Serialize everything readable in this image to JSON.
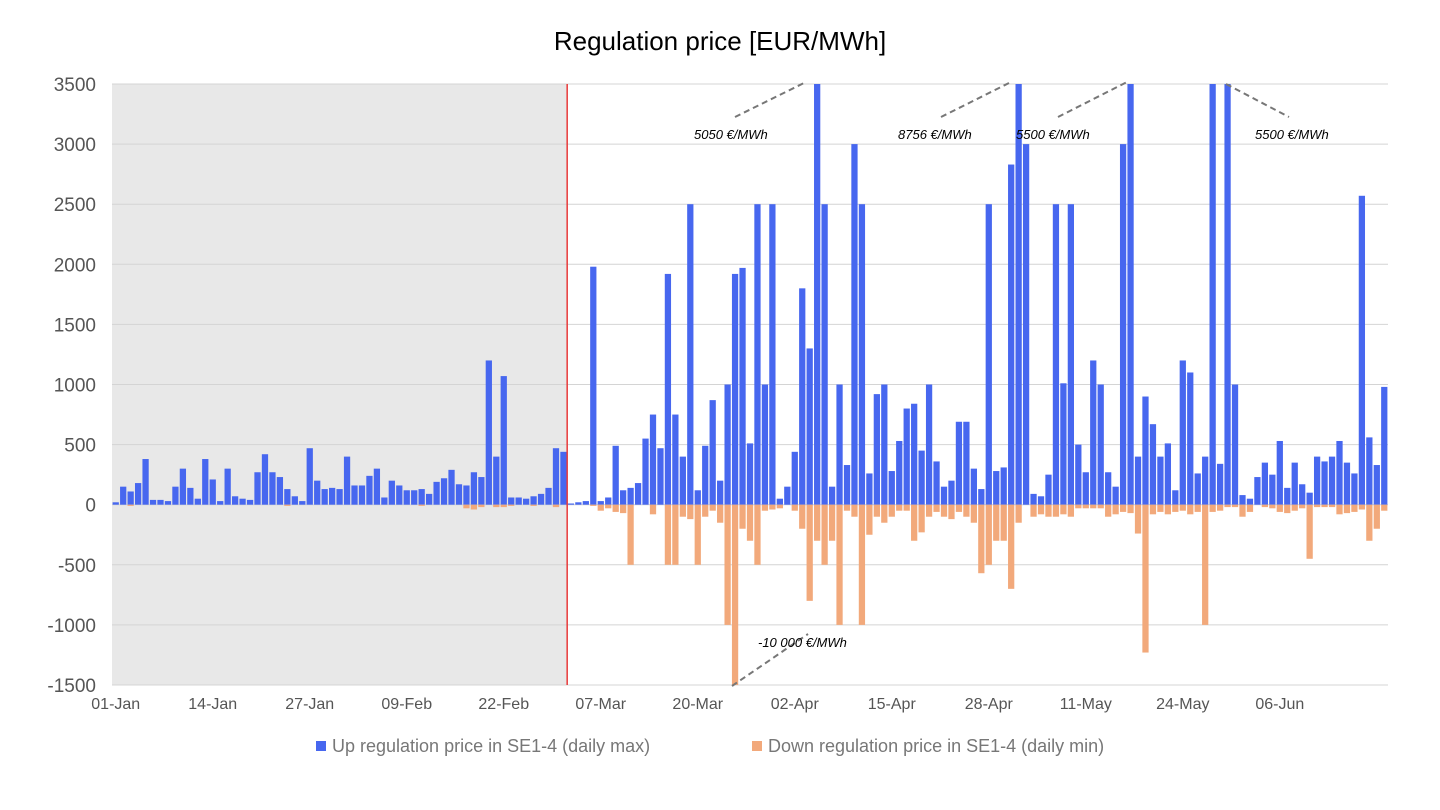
{
  "chart_data": {
    "type": "bar",
    "title": "Regulation price [EUR/MWh]",
    "xlabel": "",
    "ylabel": "",
    "ylim": [
      -1500,
      3500
    ],
    "yticks": [
      3500,
      3000,
      2500,
      2000,
      1500,
      1000,
      500,
      0,
      -500,
      -1000,
      -1500
    ],
    "grid": true,
    "legend_position": "bottom",
    "x_tick_labels": [
      "01-Jan",
      "14-Jan",
      "27-Jan",
      "09-Feb",
      "22-Feb",
      "07-Mar",
      "20-Mar",
      "02-Apr",
      "15-Apr",
      "28-Apr",
      "11-May",
      "24-May",
      "06-Jun"
    ],
    "shaded_region_end": "03-Mar",
    "marker_line_at": "03-Mar",
    "series": [
      {
        "name": "Up regulation price in SE1-4 (daily max)",
        "color": "#4767ef",
        "values": [
          20,
          150,
          110,
          180,
          380,
          40,
          40,
          30,
          150,
          300,
          140,
          50,
          380,
          210,
          30,
          300,
          70,
          50,
          40,
          270,
          420,
          270,
          230,
          130,
          70,
          30,
          470,
          200,
          130,
          140,
          130,
          400,
          160,
          160,
          240,
          300,
          60,
          200,
          160,
          120,
          120,
          130,
          90,
          190,
          220,
          290,
          170,
          160,
          270,
          230,
          1200,
          400,
          1070,
          60,
          60,
          50,
          70,
          90,
          140,
          470,
          440,
          10,
          20,
          30,
          1980,
          30,
          60,
          490,
          120,
          140,
          180,
          550,
          750,
          470,
          1920,
          750,
          400,
          2500,
          120,
          490,
          870,
          200,
          1000,
          1920,
          1970,
          510,
          2500,
          1000,
          2500,
          50,
          150,
          440,
          1800,
          1300,
          3500,
          2500,
          150,
          1000,
          330,
          3000,
          2500,
          260,
          920,
          1000,
          280,
          530,
          800,
          840,
          450,
          1000,
          360,
          150,
          200,
          690,
          690,
          300,
          130,
          2500,
          280,
          310,
          2830,
          3500,
          3000,
          90,
          70,
          250,
          2500,
          1010,
          2500,
          500,
          270,
          1200,
          1000,
          270,
          150,
          3000,
          3500,
          400,
          900,
          670,
          400,
          510,
          120,
          1200,
          1100,
          260,
          400,
          3500,
          340,
          3500,
          1000,
          80,
          50,
          230,
          350,
          250,
          530,
          140,
          350,
          170,
          100,
          400,
          360,
          400,
          530,
          350,
          260,
          2570,
          560,
          330,
          980
        ]
      },
      {
        "name": "Down regulation price in SE1-4 (daily min)",
        "color": "#f2a97b",
        "values": [
          0,
          0,
          -10,
          0,
          0,
          0,
          0,
          0,
          0,
          0,
          0,
          0,
          0,
          0,
          0,
          0,
          0,
          0,
          0,
          0,
          0,
          0,
          0,
          -10,
          0,
          0,
          0,
          0,
          0,
          0,
          0,
          0,
          0,
          0,
          0,
          0,
          0,
          0,
          0,
          0,
          0,
          -10,
          0,
          0,
          0,
          0,
          0,
          -30,
          -40,
          -20,
          0,
          -20,
          -20,
          -10,
          0,
          0,
          -10,
          0,
          0,
          -20,
          0,
          0,
          0,
          0,
          -10,
          -50,
          -30,
          -60,
          -70,
          -500,
          0,
          0,
          -80,
          0,
          -500,
          -500,
          -100,
          -120,
          -500,
          -100,
          -50,
          -150,
          -1000,
          -1500,
          -200,
          -300,
          -500,
          -50,
          -40,
          -30,
          0,
          -50,
          -200,
          -800,
          -300,
          -500,
          -300,
          -1000,
          -50,
          -100,
          -1000,
          -250,
          -100,
          -150,
          -100,
          -50,
          -50,
          -300,
          -230,
          -100,
          -60,
          -100,
          -120,
          -60,
          -100,
          -150,
          -570,
          -500,
          -300,
          -300,
          -700,
          -150,
          0,
          -100,
          -80,
          -100,
          -100,
          -80,
          -100,
          -30,
          -30,
          -30,
          -30,
          -100,
          -80,
          -60,
          -70,
          -240,
          -1230,
          -80,
          -60,
          -80,
          -60,
          -50,
          -80,
          -60,
          -1000,
          -60,
          -50,
          -20,
          -20,
          -100,
          -60,
          0,
          -20,
          -30,
          -60,
          -70,
          -50,
          -30,
          -450,
          -20,
          -20,
          -20,
          -80,
          -70,
          -60,
          -40,
          -300,
          -200,
          -50,
          -60,
          -160,
          -80
        ]
      }
    ],
    "annotations": [
      {
        "text": "5050 €/MWh",
        "x": "03-Apr",
        "y": 3500
      },
      {
        "text": "8756 €/MWh",
        "x": "29-Apr",
        "y": 3500
      },
      {
        "text": "5500 €/MWh",
        "x": "14-May",
        "y": 3500
      },
      {
        "text": "5500 €/MWh",
        "x": "28-May",
        "y": 3500
      },
      {
        "text": "-10 000 €/MWh",
        "x": "24-Mar",
        "y": -1500
      }
    ]
  }
}
